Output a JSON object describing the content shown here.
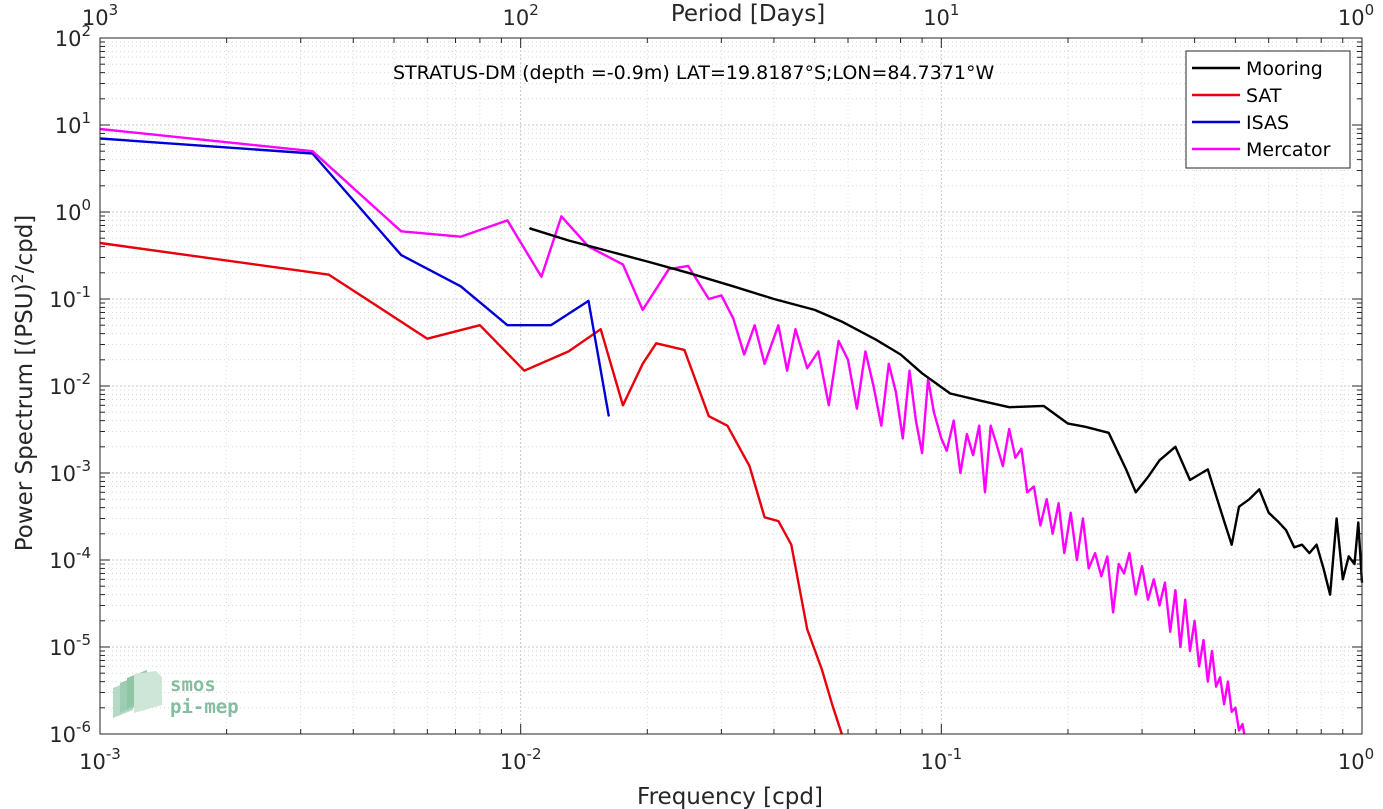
{
  "chart_data": {
    "type": "line",
    "title": "STRATUS-DM (depth =-0.9m) LAT=19.8187°S;LON=84.7371°W",
    "xlabel": "Frequency [cpd]",
    "ylabel": "Power Spectrum [(PSU)^2/cpd]",
    "x2label": "Period [Days]",
    "xscale": "log",
    "yscale": "log",
    "xlim": [
      0.001,
      1
    ],
    "ylim": [
      1e-06,
      100
    ],
    "grid": true,
    "legend_position": "top-right",
    "x_tick_values": [
      0.001,
      0.01,
      0.1,
      1
    ],
    "x_tick_labels": [
      [
        "10",
        "-3"
      ],
      [
        "10",
        "-2"
      ],
      [
        "10",
        "-1"
      ],
      [
        "10",
        "0"
      ]
    ],
    "x2_tick_labels": [
      [
        "10",
        "3"
      ],
      [
        "10",
        "2"
      ],
      [
        "10",
        "1"
      ],
      [
        "10",
        "0"
      ]
    ],
    "y_tick_values": [
      1e-06,
      1e-05,
      0.0001,
      0.001,
      0.01,
      0.1,
      1,
      10,
      100
    ],
    "y_tick_labels": [
      [
        "10",
        "-6"
      ],
      [
        "10",
        "-5"
      ],
      [
        "10",
        "-4"
      ],
      [
        "10",
        "-3"
      ],
      [
        "10",
        "-2"
      ],
      [
        "10",
        "-1"
      ],
      [
        "10",
        "0"
      ],
      [
        "10",
        "1"
      ],
      [
        "10",
        "2"
      ]
    ],
    "series": [
      {
        "name": "Mooring",
        "color": "#000000",
        "points": [
          [
            0.0105,
            0.65
          ],
          [
            0.013,
            0.47
          ],
          [
            0.016,
            0.36
          ],
          [
            0.02,
            0.27
          ],
          [
            0.025,
            0.2
          ],
          [
            0.032,
            0.14
          ],
          [
            0.04,
            0.1
          ],
          [
            0.05,
            0.075
          ],
          [
            0.058,
            0.055
          ],
          [
            0.07,
            0.034
          ],
          [
            0.08,
            0.023
          ],
          [
            0.09,
            0.014
          ],
          [
            0.105,
            0.0082
          ],
          [
            0.125,
            0.0067
          ],
          [
            0.145,
            0.0057
          ],
          [
            0.16,
            0.0058
          ],
          [
            0.175,
            0.0059
          ],
          [
            0.2,
            0.0037
          ],
          [
            0.22,
            0.0034
          ],
          [
            0.25,
            0.0029
          ],
          [
            0.275,
            0.0011
          ],
          [
            0.29,
            0.0006
          ],
          [
            0.31,
            0.0009
          ],
          [
            0.33,
            0.0014
          ],
          [
            0.36,
            0.002
          ],
          [
            0.39,
            0.00083
          ],
          [
            0.43,
            0.0011
          ],
          [
            0.47,
            0.00028
          ],
          [
            0.49,
            0.00015
          ],
          [
            0.51,
            0.00041
          ],
          [
            0.54,
            0.0005
          ],
          [
            0.57,
            0.00065
          ],
          [
            0.6,
            0.00035
          ],
          [
            0.63,
            0.00028
          ],
          [
            0.66,
            0.00022
          ],
          [
            0.69,
            0.00014
          ],
          [
            0.72,
            0.00015
          ],
          [
            0.75,
            0.00012
          ],
          [
            0.78,
            0.00015
          ],
          [
            0.81,
            8e-05
          ],
          [
            0.84,
            4e-05
          ],
          [
            0.87,
            0.0003
          ],
          [
            0.9,
            6e-05
          ],
          [
            0.93,
            0.00011
          ],
          [
            0.96,
            9e-05
          ],
          [
            0.98,
            0.00027
          ],
          [
            0.99,
            0.00012
          ],
          [
            1.0,
            5.5e-05
          ]
        ]
      },
      {
        "name": "SAT",
        "color": "#e8000b",
        "points": [
          [
            0.001,
            0.44
          ],
          [
            0.0035,
            0.19
          ],
          [
            0.006,
            0.035
          ],
          [
            0.008,
            0.05
          ],
          [
            0.0102,
            0.015
          ],
          [
            0.013,
            0.025
          ],
          [
            0.0155,
            0.045
          ],
          [
            0.0175,
            0.006
          ],
          [
            0.0195,
            0.018
          ],
          [
            0.021,
            0.031
          ],
          [
            0.0245,
            0.026
          ],
          [
            0.028,
            0.0045
          ],
          [
            0.031,
            0.0035
          ],
          [
            0.035,
            0.0012
          ],
          [
            0.038,
            0.00031
          ],
          [
            0.041,
            0.00028
          ],
          [
            0.044,
            0.00015
          ],
          [
            0.048,
            1.6e-05
          ],
          [
            0.052,
            5.5e-06
          ],
          [
            0.055,
            2.2e-06
          ],
          [
            0.058,
            1e-06
          ]
        ]
      },
      {
        "name": "ISAS",
        "color": "#0000d6",
        "points": [
          [
            0.001,
            7.0
          ],
          [
            0.0032,
            4.7
          ],
          [
            0.0052,
            0.32
          ],
          [
            0.0072,
            0.14
          ],
          [
            0.0093,
            0.05
          ],
          [
            0.0118,
            0.05
          ],
          [
            0.0145,
            0.095
          ],
          [
            0.0162,
            0.0045
          ]
        ]
      },
      {
        "name": "Mercator",
        "color": "#ff00ff",
        "points": [
          [
            0.001,
            9.0
          ],
          [
            0.0032,
            5.0
          ],
          [
            0.0052,
            0.6
          ],
          [
            0.0072,
            0.52
          ],
          [
            0.0093,
            0.8
          ],
          [
            0.0112,
            0.18
          ],
          [
            0.0125,
            0.89
          ],
          [
            0.0145,
            0.4
          ],
          [
            0.0175,
            0.25
          ],
          [
            0.0195,
            0.075
          ],
          [
            0.0225,
            0.22
          ],
          [
            0.025,
            0.24
          ],
          [
            0.028,
            0.1
          ],
          [
            0.03,
            0.11
          ],
          [
            0.032,
            0.06
          ],
          [
            0.034,
            0.023
          ],
          [
            0.036,
            0.05
          ],
          [
            0.038,
            0.018
          ],
          [
            0.041,
            0.05
          ],
          [
            0.043,
            0.015
          ],
          [
            0.045,
            0.045
          ],
          [
            0.048,
            0.016
          ],
          [
            0.051,
            0.025
          ],
          [
            0.054,
            0.006
          ],
          [
            0.057,
            0.033
          ],
          [
            0.06,
            0.02
          ],
          [
            0.063,
            0.0055
          ],
          [
            0.066,
            0.025
          ],
          [
            0.069,
            0.01
          ],
          [
            0.072,
            0.0035
          ],
          [
            0.075,
            0.018
          ],
          [
            0.078,
            0.0085
          ],
          [
            0.081,
            0.0025
          ],
          [
            0.084,
            0.015
          ],
          [
            0.087,
            0.004
          ],
          [
            0.09,
            0.0017
          ],
          [
            0.093,
            0.012
          ],
          [
            0.096,
            0.005
          ],
          [
            0.1,
            0.0025
          ],
          [
            0.103,
            0.0018
          ],
          [
            0.107,
            0.004
          ],
          [
            0.111,
            0.001
          ],
          [
            0.115,
            0.0028
          ],
          [
            0.119,
            0.0016
          ],
          [
            0.123,
            0.0035
          ],
          [
            0.127,
            0.0006
          ],
          [
            0.131,
            0.0035
          ],
          [
            0.135,
            0.0022
          ],
          [
            0.14,
            0.0012
          ],
          [
            0.145,
            0.0032
          ],
          [
            0.15,
            0.0015
          ],
          [
            0.155,
            0.0019
          ],
          [
            0.16,
            0.0006
          ],
          [
            0.166,
            0.0007
          ],
          [
            0.172,
            0.00025
          ],
          [
            0.178,
            0.0005
          ],
          [
            0.184,
            0.0002
          ],
          [
            0.19,
            0.00045
          ],
          [
            0.196,
            0.00012
          ],
          [
            0.203,
            0.00035
          ],
          [
            0.21,
            0.0001
          ],
          [
            0.217,
            0.0003
          ],
          [
            0.224,
            8e-05
          ],
          [
            0.232,
            0.00012
          ],
          [
            0.24,
            6.5e-05
          ],
          [
            0.248,
            0.00011
          ],
          [
            0.256,
            2.5e-05
          ],
          [
            0.264,
            9e-05
          ],
          [
            0.272,
            7e-05
          ],
          [
            0.28,
            0.00012
          ],
          [
            0.29,
            4e-05
          ],
          [
            0.3,
            8.5e-05
          ],
          [
            0.31,
            3.5e-05
          ],
          [
            0.32,
            6e-05
          ],
          [
            0.33,
            3e-05
          ],
          [
            0.34,
            5.5e-05
          ],
          [
            0.35,
            1.5e-05
          ],
          [
            0.36,
            4.5e-05
          ],
          [
            0.37,
            1e-05
          ],
          [
            0.38,
            3.5e-05
          ],
          [
            0.39,
            9e-06
          ],
          [
            0.4,
            2e-05
          ],
          [
            0.41,
            6e-06
          ],
          [
            0.42,
            1.2e-05
          ],
          [
            0.43,
            4e-06
          ],
          [
            0.44,
            9e-06
          ],
          [
            0.45,
            3.5e-06
          ],
          [
            0.46,
            4.5e-06
          ],
          [
            0.47,
            2.2e-06
          ],
          [
            0.48,
            4e-06
          ],
          [
            0.49,
            1.8e-06
          ],
          [
            0.5,
            2e-06
          ],
          [
            0.51,
            1.1e-06
          ],
          [
            0.52,
            1.3e-06
          ],
          [
            0.525,
            1e-06
          ]
        ]
      }
    ]
  },
  "watermark": {
    "line1": "smos",
    "line2": "pi-mep",
    "color": "#6fb38f"
  }
}
